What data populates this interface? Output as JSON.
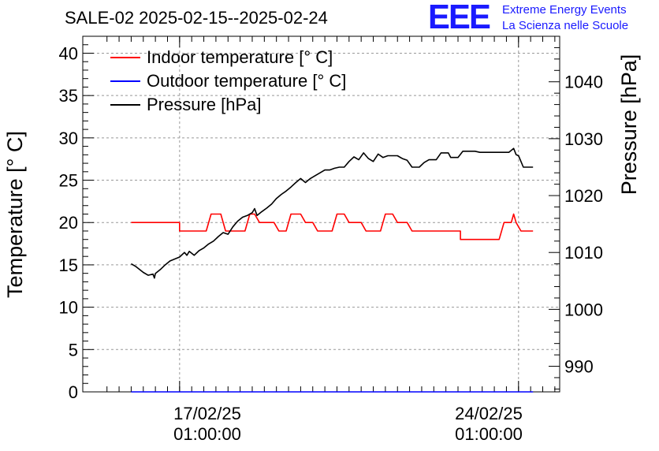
{
  "chart_data": {
    "type": "line",
    "title": "SALE-02 2025-02-15--2025-02-24",
    "ylabel": "Temperature [° C]",
    "y2label": "Pressure [hPa]",
    "ylim": [
      0,
      42
    ],
    "y2lim": [
      985.5,
      1048
    ],
    "yticks": [
      "0",
      "5",
      "10",
      "15",
      "20",
      "25",
      "30",
      "35",
      "40"
    ],
    "y2ticks": [
      "990",
      "1000",
      "1010",
      "1020",
      "1030",
      "1040"
    ],
    "xticks": [
      {
        "date": "17/02/25",
        "time": "01:00:00",
        "x": 1.5
      },
      {
        "date": "24/02/25",
        "time": "01:00:00",
        "x": 8.5
      }
    ],
    "xlim": [
      -0.5,
      9.35
    ],
    "grid": true,
    "legend_position": "top-left",
    "series": [
      {
        "name": "Indoor temperature [° C]",
        "color": "#ff0000",
        "axis": "left",
        "points": [
          [
            0.5,
            20
          ],
          [
            1.5,
            20
          ],
          [
            1.5,
            19
          ],
          [
            1.75,
            19
          ],
          [
            2.05,
            19
          ],
          [
            2.15,
            21
          ],
          [
            2.35,
            21
          ],
          [
            2.45,
            19
          ],
          [
            2.85,
            19
          ],
          [
            2.95,
            21
          ],
          [
            3.05,
            21
          ],
          [
            3.15,
            20
          ],
          [
            3.45,
            20
          ],
          [
            3.55,
            19
          ],
          [
            3.7,
            19
          ],
          [
            3.8,
            21
          ],
          [
            4.0,
            21
          ],
          [
            4.1,
            20
          ],
          [
            4.25,
            20
          ],
          [
            4.35,
            19
          ],
          [
            4.65,
            19
          ],
          [
            4.75,
            21
          ],
          [
            4.9,
            21
          ],
          [
            5.0,
            20
          ],
          [
            5.25,
            20
          ],
          [
            5.35,
            19
          ],
          [
            5.65,
            19
          ],
          [
            5.75,
            21
          ],
          [
            5.9,
            21
          ],
          [
            6.0,
            20
          ],
          [
            6.2,
            20
          ],
          [
            6.3,
            19
          ],
          [
            6.8,
            19
          ],
          [
            7.3,
            19
          ],
          [
            7.3,
            18
          ],
          [
            8.1,
            18
          ],
          [
            8.2,
            20
          ],
          [
            8.35,
            20
          ],
          [
            8.4,
            21
          ],
          [
            8.45,
            20
          ],
          [
            8.55,
            19
          ],
          [
            8.8,
            19
          ]
        ]
      },
      {
        "name": "Outdoor temperature [° C]",
        "color": "#0000ff",
        "axis": "left",
        "points": [
          [
            0.5,
            0
          ],
          [
            8.8,
            0
          ]
        ]
      },
      {
        "name": "Pressure [hPa]",
        "color": "#000000",
        "axis": "right",
        "points": [
          [
            0.5,
            1008
          ],
          [
            0.6,
            1007.5
          ],
          [
            0.75,
            1006.5
          ],
          [
            0.85,
            1006
          ],
          [
            0.95,
            1006.2
          ],
          [
            0.98,
            1005.5
          ],
          [
            1.0,
            1006.3
          ],
          [
            1.1,
            1007
          ],
          [
            1.2,
            1007.8
          ],
          [
            1.3,
            1008.5
          ],
          [
            1.5,
            1009.2
          ],
          [
            1.6,
            1010
          ],
          [
            1.65,
            1009.5
          ],
          [
            1.7,
            1010.2
          ],
          [
            1.8,
            1009.5
          ],
          [
            1.9,
            1010.3
          ],
          [
            2.0,
            1010.8
          ],
          [
            2.1,
            1011.5
          ],
          [
            2.2,
            1012
          ],
          [
            2.3,
            1012.8
          ],
          [
            2.4,
            1013.5
          ],
          [
            2.5,
            1013.2
          ],
          [
            2.6,
            1014.5
          ],
          [
            2.7,
            1015.5
          ],
          [
            2.8,
            1016.2
          ],
          [
            2.9,
            1016.5
          ],
          [
            3.0,
            1017
          ],
          [
            3.05,
            1017.7
          ],
          [
            3.1,
            1016.5
          ],
          [
            3.2,
            1017.2
          ],
          [
            3.3,
            1017.8
          ],
          [
            3.4,
            1018.5
          ],
          [
            3.5,
            1019.5
          ],
          [
            3.6,
            1020.2
          ],
          [
            3.7,
            1020.8
          ],
          [
            3.8,
            1021.5
          ],
          [
            3.9,
            1022.3
          ],
          [
            4.0,
            1023
          ],
          [
            4.1,
            1022.3
          ],
          [
            4.2,
            1023
          ],
          [
            4.3,
            1023.5
          ],
          [
            4.4,
            1024
          ],
          [
            4.5,
            1024.5
          ],
          [
            4.6,
            1024.5
          ],
          [
            4.7,
            1024.8
          ],
          [
            4.8,
            1025
          ],
          [
            4.9,
            1025
          ],
          [
            5.0,
            1026
          ],
          [
            5.1,
            1026.8
          ],
          [
            5.2,
            1026.3
          ],
          [
            5.3,
            1027.5
          ],
          [
            5.4,
            1026.5
          ],
          [
            5.5,
            1026
          ],
          [
            5.6,
            1027.3
          ],
          [
            5.7,
            1026.7
          ],
          [
            5.8,
            1027
          ],
          [
            6.0,
            1027
          ],
          [
            6.1,
            1026.5
          ],
          [
            6.2,
            1026.2
          ],
          [
            6.3,
            1025
          ],
          [
            6.45,
            1025
          ],
          [
            6.55,
            1025.8
          ],
          [
            6.65,
            1026.3
          ],
          [
            6.8,
            1026.3
          ],
          [
            6.9,
            1027.5
          ],
          [
            7.05,
            1027.5
          ],
          [
            7.1,
            1026.7
          ],
          [
            7.25,
            1026.7
          ],
          [
            7.35,
            1027.8
          ],
          [
            7.6,
            1027.8
          ],
          [
            7.7,
            1027.6
          ],
          [
            7.9,
            1027.6
          ],
          [
            8.0,
            1027.6
          ],
          [
            8.3,
            1027.6
          ],
          [
            8.4,
            1028.3
          ],
          [
            8.45,
            1027.2
          ],
          [
            8.5,
            1027
          ],
          [
            8.55,
            1026
          ],
          [
            8.6,
            1025
          ],
          [
            8.8,
            1025
          ]
        ]
      }
    ]
  },
  "logo": {
    "mark": "EEE",
    "line1": "Extreme Energy Events",
    "line2": "La Scienza nelle Scuole",
    "color": "#1a1aff"
  }
}
